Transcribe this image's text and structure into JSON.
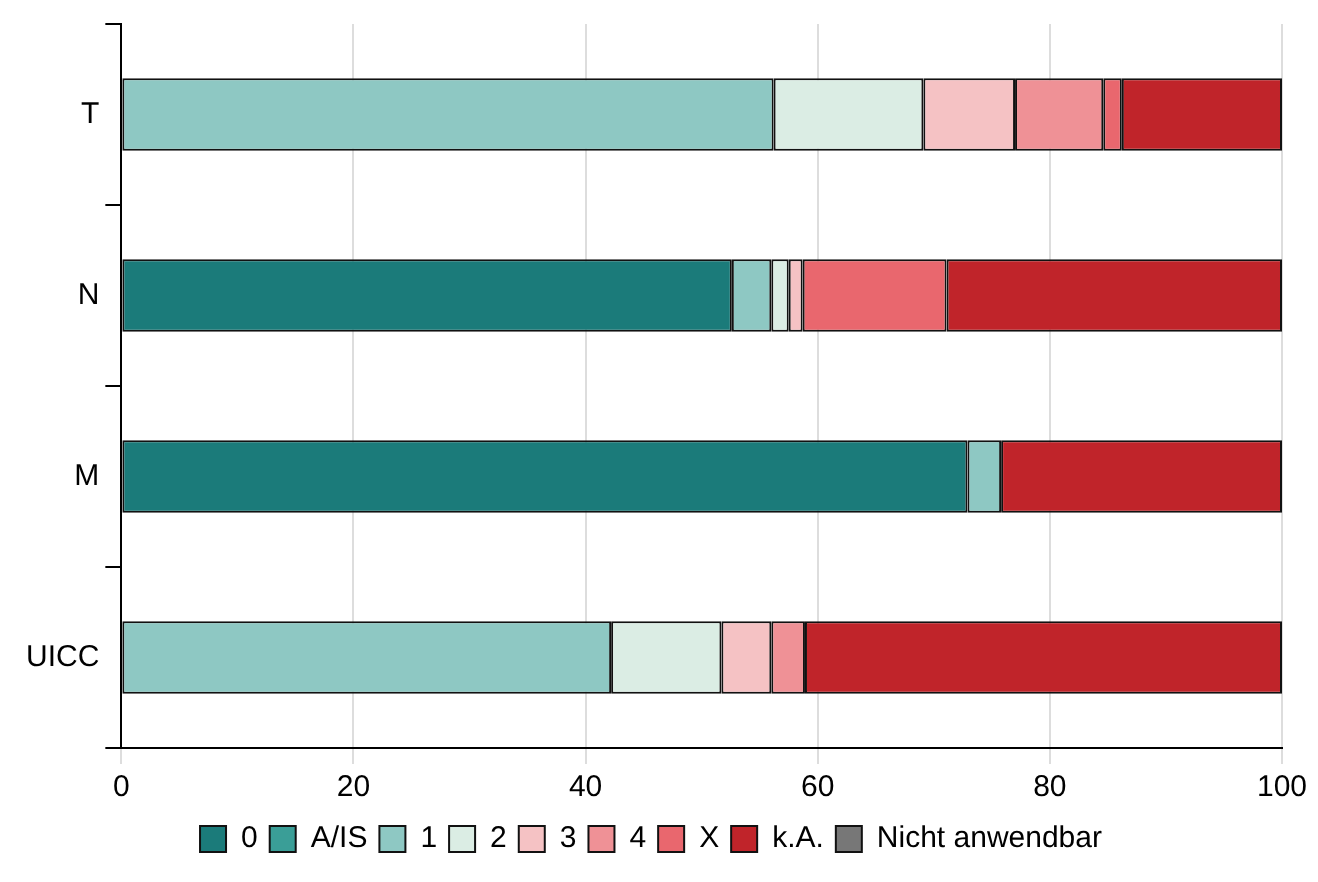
{
  "chart_data": {
    "type": "bar",
    "orientation": "horizontal",
    "stacked": true,
    "categories": [
      "T",
      "N",
      "M",
      "UICC"
    ],
    "series": [
      {
        "name": "0",
        "color": "#1b7b7a",
        "values": [
          0,
          52.6,
          72.9,
          0
        ]
      },
      {
        "name": "A/IS",
        "color": "#3a9e97",
        "values": [
          0,
          0,
          0,
          0
        ]
      },
      {
        "name": "1",
        "color": "#8ec8c3",
        "values": [
          56.2,
          3.4,
          2.9,
          42.2
        ]
      },
      {
        "name": "2",
        "color": "#dbede4",
        "values": [
          12.9,
          1.5,
          0,
          9.5
        ]
      },
      {
        "name": "3",
        "color": "#f5c2c4",
        "values": [
          7.9,
          1.2,
          0,
          4.3
        ]
      },
      {
        "name": "4",
        "color": "#ef9196",
        "values": [
          7.6,
          0,
          0,
          2.9
        ]
      },
      {
        "name": "X",
        "color": "#e9676e",
        "values": [
          1.6,
          12.4,
          0,
          0
        ]
      },
      {
        "name": "k.A.",
        "color": "#c0242a",
        "values": [
          13.8,
          28.9,
          24.2,
          41.1
        ]
      },
      {
        "name": "Nicht anwendbar",
        "color": "#777777",
        "values": [
          0,
          0,
          0,
          0
        ]
      }
    ],
    "xlim": [
      0,
      100
    ],
    "xticks": [
      0,
      20,
      40,
      60,
      80,
      100
    ],
    "grid": "x",
    "legend": "bottom"
  }
}
